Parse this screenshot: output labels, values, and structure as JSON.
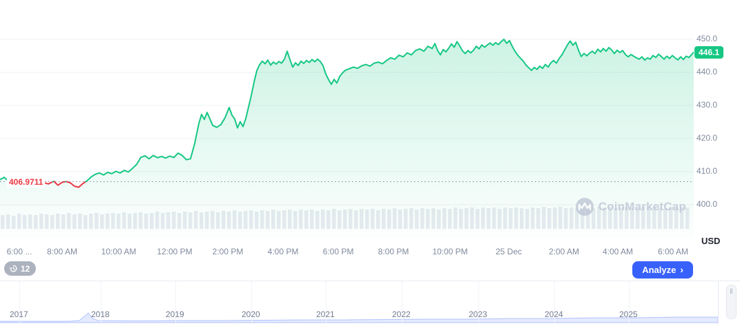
{
  "price_badge": {
    "value": "446.1",
    "color": "#16c784"
  },
  "reference": {
    "value": "406.9711",
    "color": "#ea3943"
  },
  "y_axis": {
    "labels": [
      "450.0",
      "440.0",
      "430.0",
      "420.0",
      "410.0",
      "400.0"
    ],
    "currency": "USD"
  },
  "x_axis": {
    "labels": [
      "6:00 ...",
      "8:00 AM",
      "10:00 AM",
      "12:00 PM",
      "2:00 PM",
      "4:00 PM",
      "6:00 PM",
      "8:00 PM",
      "10:00 PM",
      "25 Dec",
      "2:00 AM",
      "4:00 AM",
      "6:00 AM"
    ]
  },
  "watermark": {
    "text": "CoinMarketCap"
  },
  "history_button": {
    "count": "12"
  },
  "analyze_button": {
    "label": "Analyze",
    "chevron": "›"
  },
  "timeline": {
    "years": [
      "2017",
      "2018",
      "2019",
      "2020",
      "2021",
      "2022",
      "2023",
      "2024",
      "2025"
    ]
  },
  "chart_data": {
    "type": "area",
    "title": "",
    "xlabel": "",
    "ylabel": "USD",
    "ylim": [
      397,
      452
    ],
    "y_ticks": [
      450,
      440,
      430,
      420,
      410,
      400
    ],
    "reference_price": 406.9711,
    "last_price": 446.1,
    "grid": true,
    "colors": {
      "up": "#16c784",
      "down": "#ea3943",
      "fill_top": "rgba(22,199,132,0.22)",
      "fill_bottom": "rgba(22,199,132,0.01)"
    },
    "x_labels": [
      "6:00 ...",
      "8:00 AM",
      "10:00 AM",
      "12:00 PM",
      "2:00 PM",
      "4:00 PM",
      "6:00 PM",
      "8:00 PM",
      "10:00 PM",
      "25 Dec",
      "2:00 AM",
      "4:00 AM",
      "6:00 AM"
    ],
    "series": [
      {
        "name": "price",
        "points": [
          [
            0,
            407.6
          ],
          [
            6,
            408.3
          ],
          [
            12,
            407.2
          ],
          [
            18,
            406.8
          ],
          [
            24,
            406.6
          ],
          [
            30,
            406.9
          ],
          [
            38,
            406.5
          ],
          [
            46,
            406.7
          ],
          [
            54,
            406.4
          ],
          [
            62,
            406.8
          ],
          [
            70,
            406.3
          ],
          [
            78,
            407.1
          ],
          [
            84,
            405.9
          ],
          [
            90,
            406.8
          ],
          [
            96,
            407.0
          ],
          [
            102,
            406.6
          ],
          [
            108,
            405.6
          ],
          [
            114,
            405.3
          ],
          [
            120,
            406.4
          ],
          [
            126,
            407.2
          ],
          [
            132,
            408.4
          ],
          [
            138,
            409.2
          ],
          [
            144,
            409.6
          ],
          [
            150,
            409.0
          ],
          [
            156,
            409.8
          ],
          [
            162,
            409.4
          ],
          [
            168,
            410.1
          ],
          [
            174,
            409.6
          ],
          [
            180,
            410.4
          ],
          [
            186,
            409.9
          ],
          [
            192,
            411.0
          ],
          [
            198,
            412.2
          ],
          [
            204,
            414.3
          ],
          [
            210,
            414.8
          ],
          [
            216,
            413.9
          ],
          [
            222,
            414.9
          ],
          [
            228,
            414.2
          ],
          [
            234,
            414.6
          ],
          [
            240,
            414.1
          ],
          [
            246,
            414.7
          ],
          [
            252,
            414.3
          ],
          [
            258,
            415.6
          ],
          [
            264,
            414.9
          ],
          [
            270,
            413.6
          ],
          [
            276,
            413.9
          ],
          [
            282,
            418.5
          ],
          [
            288,
            424.5
          ],
          [
            292,
            427.3
          ],
          [
            296,
            425.8
          ],
          [
            300,
            427.9
          ],
          [
            304,
            426.0
          ],
          [
            308,
            424.0
          ],
          [
            314,
            423.4
          ],
          [
            320,
            424.2
          ],
          [
            326,
            426.3
          ],
          [
            332,
            429.4
          ],
          [
            336,
            427.1
          ],
          [
            340,
            425.9
          ],
          [
            344,
            423.2
          ],
          [
            348,
            425.1
          ],
          [
            352,
            423.6
          ],
          [
            356,
            426.0
          ],
          [
            360,
            429.5
          ],
          [
            364,
            433.0
          ],
          [
            368,
            437.0
          ],
          [
            372,
            440.5
          ],
          [
            376,
            442.3
          ],
          [
            380,
            443.4
          ],
          [
            384,
            442.6
          ],
          [
            388,
            443.7
          ],
          [
            392,
            442.2
          ],
          [
            396,
            443.1
          ],
          [
            400,
            442.5
          ],
          [
            404,
            443.3
          ],
          [
            408,
            442.8
          ],
          [
            412,
            444.0
          ],
          [
            416,
            446.4
          ],
          [
            420,
            443.9
          ],
          [
            424,
            441.6
          ],
          [
            428,
            442.9
          ],
          [
            432,
            442.1
          ],
          [
            436,
            443.4
          ],
          [
            440,
            442.7
          ],
          [
            444,
            443.6
          ],
          [
            448,
            443.0
          ],
          [
            452,
            443.9
          ],
          [
            456,
            443.2
          ],
          [
            460,
            444.0
          ],
          [
            464,
            443.3
          ],
          [
            468,
            442.0
          ],
          [
            472,
            439.5
          ],
          [
            476,
            437.8
          ],
          [
            480,
            436.4
          ],
          [
            484,
            437.9
          ],
          [
            488,
            436.8
          ],
          [
            492,
            438.7
          ],
          [
            496,
            439.8
          ],
          [
            500,
            440.6
          ],
          [
            506,
            441.1
          ],
          [
            512,
            441.6
          ],
          [
            518,
            441.2
          ],
          [
            524,
            442.0
          ],
          [
            530,
            442.4
          ],
          [
            536,
            441.9
          ],
          [
            542,
            442.8
          ],
          [
            548,
            443.1
          ],
          [
            554,
            442.6
          ],
          [
            560,
            443.6
          ],
          [
            566,
            444.4
          ],
          [
            572,
            444.0
          ],
          [
            578,
            445.2
          ],
          [
            584,
            444.7
          ],
          [
            590,
            445.9
          ],
          [
            596,
            445.3
          ],
          [
            602,
            446.6
          ],
          [
            608,
            447.1
          ],
          [
            614,
            446.4
          ],
          [
            620,
            447.9
          ],
          [
            626,
            447.2
          ],
          [
            630,
            448.7
          ],
          [
            634,
            446.6
          ],
          [
            638,
            445.3
          ],
          [
            642,
            446.9
          ],
          [
            646,
            446.2
          ],
          [
            650,
            447.3
          ],
          [
            654,
            448.6
          ],
          [
            658,
            447.6
          ],
          [
            662,
            449.3
          ],
          [
            666,
            448.0
          ],
          [
            670,
            446.5
          ],
          [
            674,
            445.7
          ],
          [
            678,
            446.6
          ],
          [
            682,
            445.9
          ],
          [
            686,
            446.7
          ],
          [
            690,
            447.9
          ],
          [
            694,
            447.1
          ],
          [
            698,
            448.3
          ],
          [
            702,
            447.6
          ],
          [
            706,
            448.3
          ],
          [
            710,
            448.9
          ],
          [
            714,
            448.2
          ],
          [
            718,
            449.0
          ],
          [
            722,
            448.4
          ],
          [
            726,
            449.3
          ],
          [
            730,
            450.0
          ],
          [
            734,
            448.8
          ],
          [
            738,
            449.6
          ],
          [
            742,
            447.9
          ],
          [
            746,
            446.4
          ],
          [
            750,
            445.2
          ],
          [
            754,
            444.3
          ],
          [
            758,
            443.4
          ],
          [
            762,
            442.2
          ],
          [
            766,
            441.4
          ],
          [
            770,
            440.6
          ],
          [
            774,
            441.5
          ],
          [
            778,
            440.9
          ],
          [
            782,
            441.9
          ],
          [
            786,
            441.2
          ],
          [
            790,
            442.4
          ],
          [
            794,
            441.6
          ],
          [
            798,
            442.9
          ],
          [
            802,
            443.6
          ],
          [
            806,
            442.8
          ],
          [
            810,
            444.2
          ],
          [
            814,
            445.3
          ],
          [
            818,
            446.8
          ],
          [
            822,
            448.3
          ],
          [
            826,
            449.5
          ],
          [
            830,
            448.2
          ],
          [
            834,
            449.1
          ],
          [
            838,
            446.7
          ],
          [
            842,
            444.8
          ],
          [
            846,
            445.7
          ],
          [
            850,
            445.0
          ],
          [
            854,
            445.8
          ],
          [
            858,
            446.4
          ],
          [
            862,
            445.7
          ],
          [
            866,
            447.0
          ],
          [
            870,
            446.2
          ],
          [
            874,
            447.2
          ],
          [
            878,
            446.4
          ],
          [
            882,
            447.5
          ],
          [
            886,
            446.8
          ],
          [
            890,
            445.7
          ],
          [
            894,
            446.7
          ],
          [
            898,
            446.0
          ],
          [
            902,
            446.6
          ],
          [
            906,
            445.4
          ],
          [
            910,
            444.7
          ],
          [
            914,
            445.4
          ],
          [
            918,
            444.9
          ],
          [
            922,
            444.4
          ],
          [
            926,
            444.0
          ],
          [
            930,
            444.7
          ],
          [
            934,
            443.7
          ],
          [
            938,
            444.4
          ],
          [
            942,
            444.0
          ],
          [
            946,
            445.1
          ],
          [
            950,
            444.5
          ],
          [
            954,
            445.5
          ],
          [
            958,
            444.8
          ],
          [
            962,
            444.0
          ],
          [
            966,
            444.9
          ],
          [
            970,
            444.2
          ],
          [
            974,
            445.1
          ],
          [
            978,
            444.4
          ],
          [
            982,
            443.8
          ],
          [
            986,
            444.7
          ],
          [
            990,
            443.9
          ],
          [
            994,
            444.9
          ],
          [
            998,
            444.5
          ],
          [
            1002,
            445.4
          ],
          [
            1005,
            446.1
          ]
        ]
      }
    ],
    "volume_bar_heights": [
      20,
      21,
      19,
      22,
      20,
      21,
      20,
      22,
      21,
      20,
      22,
      21,
      23,
      21,
      22,
      20,
      22,
      23,
      21,
      22,
      23,
      22,
      24,
      22,
      23,
      24,
      22,
      23,
      25,
      23,
      24,
      25,
      23,
      25,
      24,
      26,
      24,
      25,
      26,
      24,
      26,
      25,
      27,
      25,
      26,
      27,
      25,
      27,
      26,
      28,
      26,
      27,
      28,
      26,
      28,
      27,
      28,
      26,
      28,
      27,
      29,
      27,
      28,
      29,
      27,
      29,
      28,
      29,
      27,
      29,
      28,
      30,
      28,
      29,
      30,
      28,
      30,
      29,
      30,
      28,
      30,
      29,
      31,
      29,
      30,
      31,
      29,
      31,
      30,
      31,
      29,
      31,
      30,
      31,
      30,
      29,
      31,
      30,
      32,
      30,
      31,
      32,
      30,
      31,
      30,
      32,
      31,
      30,
      32,
      31,
      32,
      30,
      31,
      32,
      31,
      30,
      32,
      31,
      32,
      31,
      30,
      32,
      31,
      32,
      31
    ],
    "minimap": {
      "years": [
        "2017",
        "2018",
        "2019",
        "2020",
        "2021",
        "2022",
        "2023",
        "2024",
        "2025"
      ],
      "profile_points": [
        [
          0,
          2
        ],
        [
          60,
          2
        ],
        [
          100,
          2
        ],
        [
          115,
          3
        ],
        [
          122,
          9
        ],
        [
          128,
          14
        ],
        [
          134,
          6
        ],
        [
          142,
          3
        ],
        [
          200,
          2.5
        ],
        [
          260,
          3
        ],
        [
          320,
          3
        ],
        [
          380,
          3.5
        ],
        [
          440,
          4
        ],
        [
          500,
          4
        ],
        [
          560,
          4.5
        ],
        [
          620,
          5
        ],
        [
          680,
          5
        ],
        [
          740,
          6
        ],
        [
          800,
          6
        ],
        [
          860,
          7
        ],
        [
          920,
          7
        ],
        [
          980,
          8
        ],
        [
          1040,
          8
        ]
      ]
    }
  }
}
